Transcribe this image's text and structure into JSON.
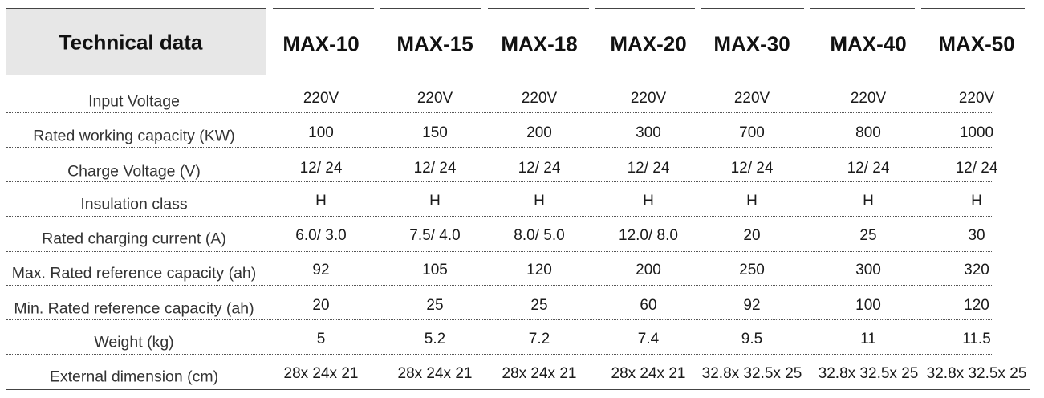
{
  "header": {
    "title": "Technical data",
    "columns": [
      "MAX-10",
      "MAX-15",
      "MAX-18",
      "MAX-20",
      "MAX-30",
      "MAX-40",
      "MAX-50"
    ]
  },
  "table": {
    "rows": [
      [
        "Input Voltage",
        "220V",
        "220V",
        "220V",
        "220V",
        "220V",
        "220V",
        "220V"
      ],
      [
        "Rated working capacity (KW)",
        "100",
        "150",
        "200",
        "300",
        "700",
        "800",
        "1000"
      ],
      [
        "Charge Voltage (V)",
        "12/ 24",
        "12/ 24",
        "12/ 24",
        "12/ 24",
        "12/ 24",
        "12/ 24",
        "12/ 24"
      ],
      [
        "Insulation class",
        "H",
        "H",
        "H",
        "H",
        "H",
        "H",
        "H"
      ],
      [
        "Rated charging current (A)",
        "6.0/ 3.0",
        "7.5/ 4.0",
        "8.0/ 5.0",
        "12.0/ 8.0",
        "20",
        "25",
        "30"
      ],
      [
        "Max. Rated reference capacity (ah)",
        "92",
        "105",
        "120",
        "200",
        "250",
        "300",
        "320"
      ],
      [
        "Min. Rated reference capacity (ah)",
        "20",
        "25",
        "25",
        "60",
        "92",
        "100",
        "120"
      ],
      [
        "Weight (kg)",
        "5",
        "5.2",
        "7.2",
        "7.4",
        "9.5",
        "11",
        "11.5"
      ],
      [
        "External dimension (cm)",
        "28x 24x 21",
        "28x 24x 21",
        "28x 24x 21",
        "28x 24x 21",
        "32.8x 32.5x 25",
        "32.8x 32.5x 25",
        "32.8x 32.5x 25"
      ]
    ]
  }
}
